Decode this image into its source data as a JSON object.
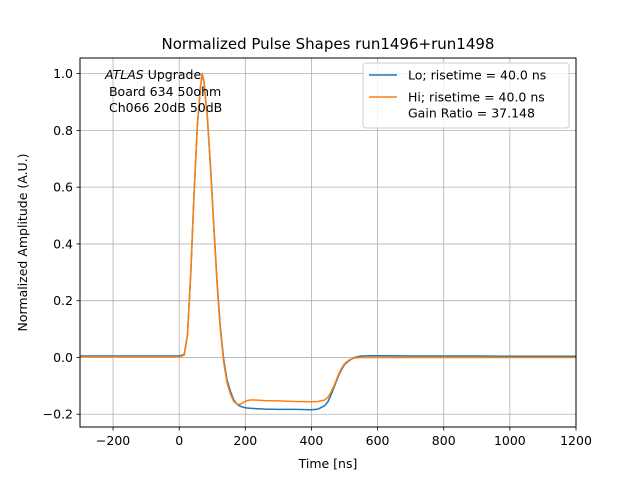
{
  "chart_data": {
    "type": "line",
    "title": "Normalized Pulse Shapes run1496+run1498",
    "xlabel": "Time [ns]",
    "ylabel": "Normalized Amplitude (A.U.)",
    "xlim": [
      -300,
      1200
    ],
    "ylim": [
      -0.245,
      1.055
    ],
    "xticks": [
      -200,
      0,
      200,
      400,
      600,
      800,
      1000,
      1200
    ],
    "xtick_labels": [
      "−200",
      "0",
      "200",
      "400",
      "600",
      "800",
      "1000",
      "1200"
    ],
    "yticks": [
      -0.2,
      0.0,
      0.2,
      0.4,
      0.6,
      0.8,
      1.0
    ],
    "ytick_labels": [
      "−0.2",
      "0.0",
      "0.2",
      "0.4",
      "0.6",
      "0.8",
      "1.0"
    ],
    "grid": true,
    "legend_position": "top-right",
    "annotation": {
      "italic": "ATLAS",
      "line1_rest": " Upgrade",
      "line2": " Board 634 50ohm",
      "line3": " Ch066 20dB 50dB"
    },
    "series": [
      {
        "name": "Lo; risetime = 40.0 ns",
        "color": "#1f77b4",
        "x": [
          -300,
          0,
          15,
          25,
          35,
          45,
          55,
          65,
          70,
          75,
          85,
          95,
          105,
          115,
          125,
          135,
          145,
          155,
          165,
          175,
          185,
          195,
          205,
          215,
          230,
          260,
          300,
          350,
          400,
          420,
          440,
          450,
          460,
          470,
          480,
          490,
          500,
          515,
          530,
          550,
          580,
          620,
          700,
          800,
          900,
          1000,
          1100,
          1200
        ],
        "y": [
          0.005,
          0.005,
          0.01,
          0.08,
          0.3,
          0.58,
          0.82,
          0.96,
          1.0,
          0.97,
          0.85,
          0.67,
          0.46,
          0.26,
          0.1,
          -0.01,
          -0.08,
          -0.12,
          -0.15,
          -0.165,
          -0.172,
          -0.176,
          -0.178,
          -0.179,
          -0.18,
          -0.182,
          -0.183,
          -0.183,
          -0.184,
          -0.182,
          -0.17,
          -0.155,
          -0.13,
          -0.1,
          -0.07,
          -0.045,
          -0.025,
          -0.01,
          0.0,
          0.005,
          0.006,
          0.006,
          0.005,
          0.005,
          0.005,
          0.004,
          0.004,
          0.004
        ]
      },
      {
        "name": "Hi; risetime = 40.0 ns\n Gain Ratio = 37.148",
        "color": "#ff7f0e",
        "x": [
          -300,
          0,
          15,
          25,
          35,
          45,
          55,
          65,
          70,
          75,
          85,
          95,
          105,
          115,
          125,
          135,
          145,
          155,
          165,
          175,
          185,
          195,
          205,
          215,
          230,
          260,
          300,
          350,
          400,
          420,
          440,
          450,
          460,
          470,
          480,
          490,
          500,
          515,
          530,
          550,
          580,
          620,
          700,
          800,
          900,
          1000,
          1100,
          1200
        ],
        "y": [
          0.002,
          0.002,
          0.008,
          0.08,
          0.3,
          0.58,
          0.82,
          0.96,
          1.0,
          0.97,
          0.85,
          0.66,
          0.45,
          0.25,
          0.09,
          -0.02,
          -0.09,
          -0.13,
          -0.155,
          -0.165,
          -0.165,
          -0.158,
          -0.152,
          -0.15,
          -0.15,
          -0.152,
          -0.153,
          -0.155,
          -0.156,
          -0.155,
          -0.15,
          -0.14,
          -0.12,
          -0.095,
          -0.065,
          -0.04,
          -0.022,
          -0.008,
          -0.002,
          0.0,
          0.0,
          0.0,
          0.0,
          0.0,
          0.0,
          0.0,
          0.0,
          0.0
        ]
      }
    ]
  }
}
